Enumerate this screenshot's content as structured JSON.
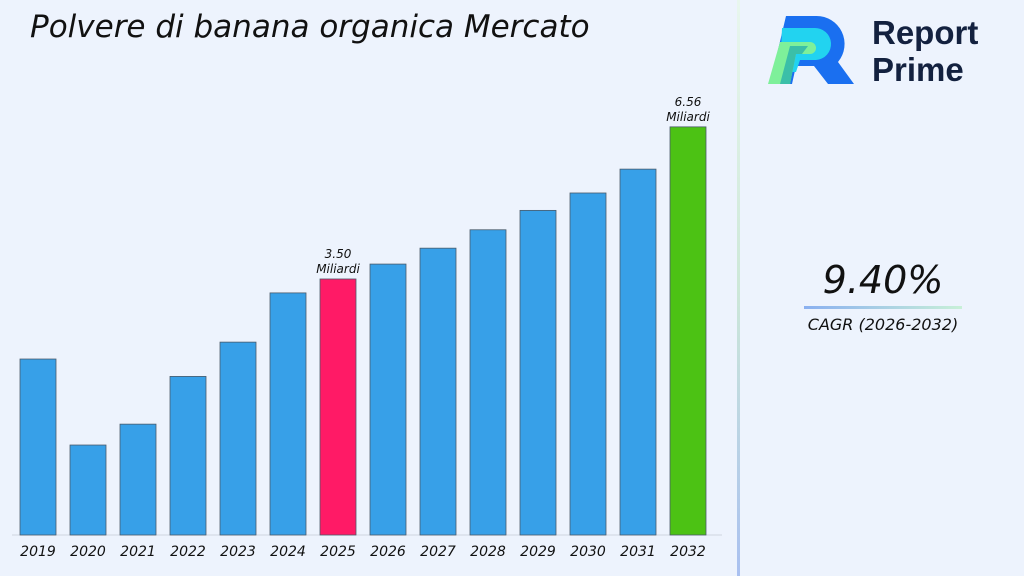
{
  "chart_data": {
    "type": "bar",
    "title": "Polvere di banana organica Mercato",
    "categories": [
      "2019",
      "2020",
      "2021",
      "2022",
      "2023",
      "2024",
      "2025",
      "2026",
      "2027",
      "2028",
      "2029",
      "2030",
      "2031",
      "2032"
    ],
    "values": [
      1.89,
      0.16,
      0.58,
      1.54,
      2.23,
      3.22,
      3.5,
      3.8,
      4.12,
      4.49,
      4.88,
      5.23,
      5.71,
      6.56
    ],
    "colors": {
      "default": "#37a0e8",
      "highlight_2025": "#ff1a66",
      "highlight_2032": "#4cc214"
    },
    "annotations": [
      {
        "category": "2025",
        "value": "3.50",
        "unit": "Miliardi"
      },
      {
        "category": "2032",
        "value": "6.56",
        "unit": "Miliardi"
      }
    ],
    "ylim": [
      -1.65,
      7.0
    ],
    "grid": false,
    "xlabel": "",
    "ylabel": ""
  },
  "brand": {
    "line1": "Report",
    "line2": "Prime"
  },
  "cagr": {
    "value": "9.40%",
    "label": "CAGR (2026-2032)"
  }
}
